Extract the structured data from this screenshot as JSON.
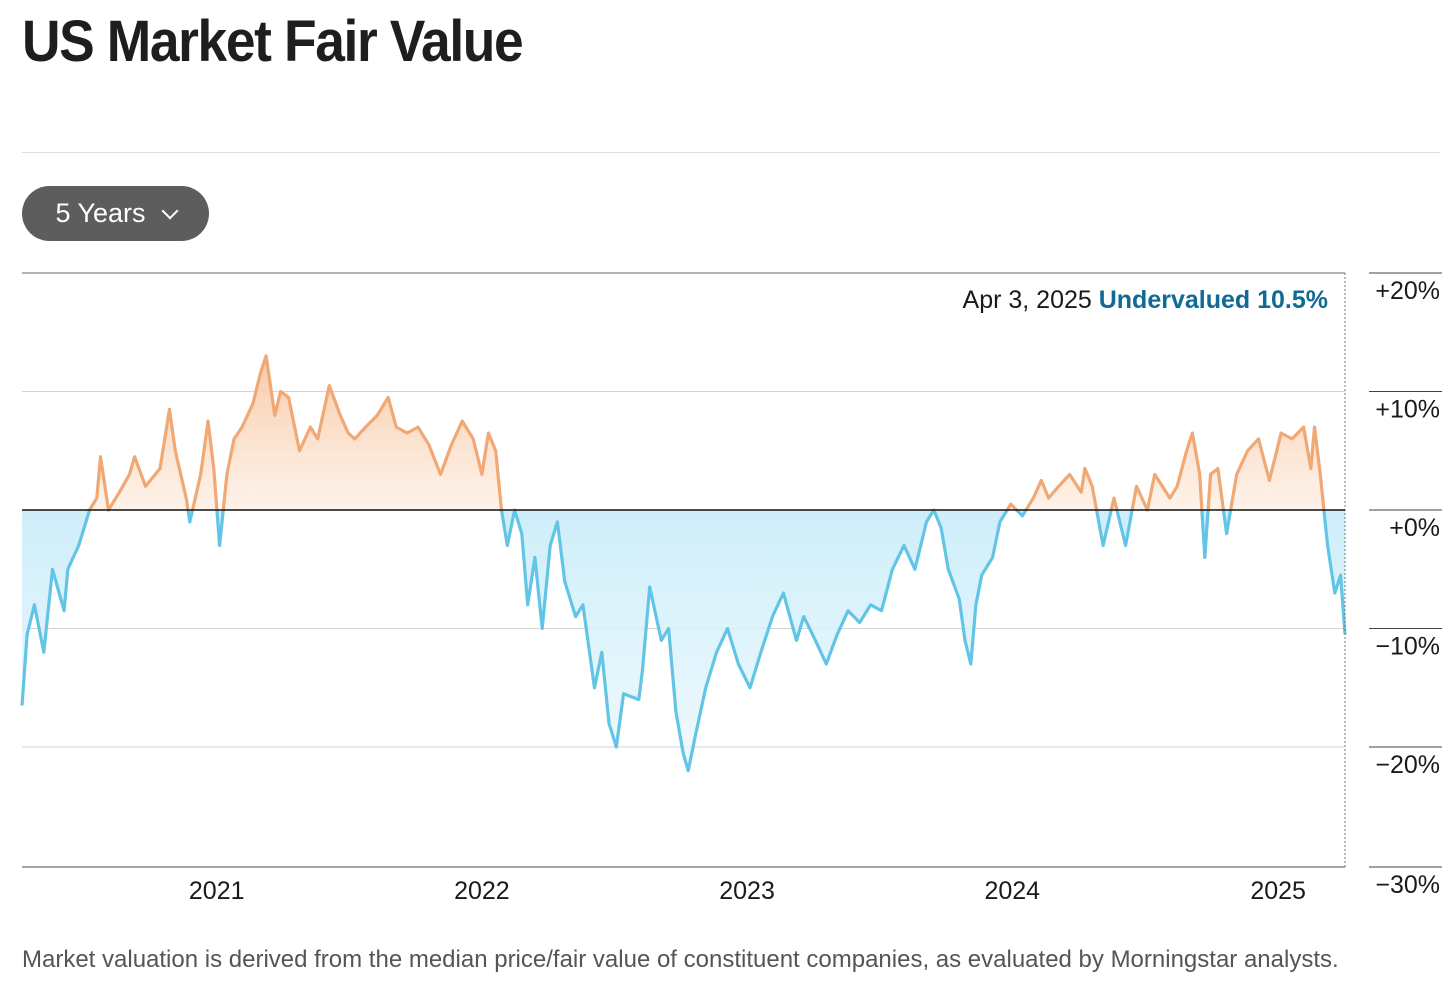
{
  "header": {
    "title": "US Market Fair Value"
  },
  "controls": {
    "range_label": "5 Years"
  },
  "annotation": {
    "date": "Apr 3, 2025",
    "status": "Undervalued 10.5%"
  },
  "footnote": "Market valuation is derived from the median price/fair value of constituent companies, as evaluated by Morningstar analysts.",
  "colors": {
    "overvalued_line": "#f0a874",
    "overvalued_fill": "#fcdcc4",
    "undervalued_line": "#62c5e6",
    "undervalued_fill": "#cfeef9",
    "status_text": "#0f6a96"
  },
  "chart_data": {
    "type": "area",
    "title": "US Market Fair Value",
    "xlabel": "",
    "ylabel": "",
    "x_tick_labels": [
      "2021",
      "2022",
      "2023",
      "2024",
      "2025"
    ],
    "y_tick_labels": [
      "+20%",
      "+10%",
      "+0%",
      "−10%",
      "−20%",
      "−30%"
    ],
    "ylim": [
      -30,
      20
    ],
    "xlim": [
      "2020-04-08",
      "2025-04-03"
    ],
    "grid": true,
    "series": [
      {
        "points": [
          [
            "2020-04-08",
            -16.5
          ],
          [
            "2020-04-15",
            -10.5
          ],
          [
            "2020-04-25",
            -8
          ],
          [
            "2020-05-08",
            -12
          ],
          [
            "2020-05-20",
            -5
          ],
          [
            "2020-06-05",
            -8.5
          ],
          [
            "2020-06-10",
            -5
          ],
          [
            "2020-06-25",
            -3
          ],
          [
            "2020-07-10",
            0
          ],
          [
            "2020-07-20",
            1
          ],
          [
            "2020-07-25",
            4.5
          ],
          [
            "2020-08-05",
            0
          ],
          [
            "2020-08-20",
            1.5
          ],
          [
            "2020-09-03",
            3
          ],
          [
            "2020-09-10",
            4.5
          ],
          [
            "2020-09-25",
            2
          ],
          [
            "2020-10-15",
            3.5
          ],
          [
            "2020-10-28",
            8.5
          ],
          [
            "2020-11-05",
            5
          ],
          [
            "2020-11-20",
            1
          ],
          [
            "2020-11-25",
            -1
          ],
          [
            "2020-12-10",
            3
          ],
          [
            "2020-12-20",
            7.5
          ],
          [
            "2020-12-28",
            3.5
          ],
          [
            "2021-01-05",
            -3
          ],
          [
            "2021-01-15",
            3
          ],
          [
            "2021-01-25",
            6
          ],
          [
            "2021-02-05",
            7
          ],
          [
            "2021-02-20",
            9
          ],
          [
            "2021-03-02",
            11.5
          ],
          [
            "2021-03-10",
            13
          ],
          [
            "2021-03-22",
            8
          ],
          [
            "2021-03-30",
            10
          ],
          [
            "2021-04-10",
            9.5
          ],
          [
            "2021-04-25",
            5
          ],
          [
            "2021-05-10",
            7
          ],
          [
            "2021-05-20",
            6
          ],
          [
            "2021-06-05",
            10.5
          ],
          [
            "2021-06-20",
            8
          ],
          [
            "2021-07-01",
            6.5
          ],
          [
            "2021-07-10",
            6
          ],
          [
            "2021-07-25",
            7
          ],
          [
            "2021-08-10",
            8
          ],
          [
            "2021-08-25",
            9.5
          ],
          [
            "2021-09-05",
            7
          ],
          [
            "2021-09-20",
            6.5
          ],
          [
            "2021-10-05",
            7
          ],
          [
            "2021-10-20",
            5.5
          ],
          [
            "2021-11-05",
            3
          ],
          [
            "2021-11-20",
            5.5
          ],
          [
            "2021-12-05",
            7.5
          ],
          [
            "2021-12-20",
            6
          ],
          [
            "2022-01-01",
            3
          ],
          [
            "2022-01-10",
            6.5
          ],
          [
            "2022-01-20",
            5
          ],
          [
            "2022-01-28",
            0
          ],
          [
            "2022-02-05",
            -3
          ],
          [
            "2022-02-15",
            0
          ],
          [
            "2022-02-25",
            -2
          ],
          [
            "2022-03-05",
            -8
          ],
          [
            "2022-03-15",
            -4
          ],
          [
            "2022-03-25",
            -10
          ],
          [
            "2022-04-05",
            -3
          ],
          [
            "2022-04-15",
            -1
          ],
          [
            "2022-04-25",
            -6
          ],
          [
            "2022-05-10",
            -9
          ],
          [
            "2022-05-20",
            -8
          ],
          [
            "2022-06-05",
            -15
          ],
          [
            "2022-06-15",
            -12
          ],
          [
            "2022-06-25",
            -18
          ],
          [
            "2022-07-05",
            -20
          ],
          [
            "2022-07-15",
            -15.5
          ],
          [
            "2022-08-05",
            -16
          ],
          [
            "2022-08-10",
            -13.5
          ],
          [
            "2022-08-20",
            -6.5
          ],
          [
            "2022-09-05",
            -11
          ],
          [
            "2022-09-15",
            -10
          ],
          [
            "2022-09-25",
            -17
          ],
          [
            "2022-10-05",
            -20.5
          ],
          [
            "2022-10-12",
            -22
          ],
          [
            "2022-10-22",
            -19
          ],
          [
            "2022-11-05",
            -15
          ],
          [
            "2022-11-20",
            -12
          ],
          [
            "2022-12-05",
            -10
          ],
          [
            "2022-12-20",
            -13
          ],
          [
            "2023-01-05",
            -15
          ],
          [
            "2023-01-20",
            -12
          ],
          [
            "2023-02-05",
            -9
          ],
          [
            "2023-02-20",
            -7
          ],
          [
            "2023-03-10",
            -11
          ],
          [
            "2023-03-20",
            -9
          ],
          [
            "2023-04-05",
            -11
          ],
          [
            "2023-04-20",
            -13
          ],
          [
            "2023-05-05",
            -10.5
          ],
          [
            "2023-05-20",
            -8.5
          ],
          [
            "2023-06-05",
            -9.5
          ],
          [
            "2023-06-20",
            -8
          ],
          [
            "2023-07-05",
            -8.5
          ],
          [
            "2023-07-20",
            -5
          ],
          [
            "2023-08-05",
            -3
          ],
          [
            "2023-08-20",
            -5
          ],
          [
            "2023-09-05",
            -1
          ],
          [
            "2023-09-15",
            0
          ],
          [
            "2023-09-25",
            -1.5
          ],
          [
            "2023-10-05",
            -5
          ],
          [
            "2023-10-20",
            -7.5
          ],
          [
            "2023-10-28",
            -11
          ],
          [
            "2023-11-05",
            -13
          ],
          [
            "2023-11-12",
            -8
          ],
          [
            "2023-11-20",
            -5.5
          ],
          [
            "2023-12-05",
            -4
          ],
          [
            "2023-12-15",
            -1
          ],
          [
            "2023-12-30",
            0.5
          ],
          [
            "2024-01-15",
            -0.5
          ],
          [
            "2024-01-30",
            1
          ],
          [
            "2024-02-10",
            2.5
          ],
          [
            "2024-02-20",
            1
          ],
          [
            "2024-03-05",
            2
          ],
          [
            "2024-03-20",
            3
          ],
          [
            "2024-04-05",
            1.5
          ],
          [
            "2024-04-10",
            3.5
          ],
          [
            "2024-04-20",
            2
          ],
          [
            "2024-05-05",
            -3
          ],
          [
            "2024-05-20",
            1
          ],
          [
            "2024-06-05",
            -3
          ],
          [
            "2024-06-20",
            2
          ],
          [
            "2024-07-05",
            0
          ],
          [
            "2024-07-15",
            3
          ],
          [
            "2024-08-05",
            1
          ],
          [
            "2024-08-15",
            2
          ],
          [
            "2024-08-28",
            5
          ],
          [
            "2024-09-05",
            6.5
          ],
          [
            "2024-09-15",
            3
          ],
          [
            "2024-09-22",
            -4
          ],
          [
            "2024-09-30",
            3
          ],
          [
            "2024-10-10",
            3.5
          ],
          [
            "2024-10-22",
            -2
          ],
          [
            "2024-11-05",
            3
          ],
          [
            "2024-11-20",
            5
          ],
          [
            "2024-12-05",
            6
          ],
          [
            "2024-12-20",
            2.5
          ],
          [
            "2025-01-05",
            6.5
          ],
          [
            "2025-01-20",
            6
          ],
          [
            "2025-02-05",
            7
          ],
          [
            "2025-02-15",
            3.5
          ],
          [
            "2025-02-20",
            7
          ],
          [
            "2025-02-28",
            3
          ],
          [
            "2025-03-05",
            0
          ],
          [
            "2025-03-10",
            -3
          ],
          [
            "2025-03-20",
            -7
          ],
          [
            "2025-03-28",
            -5.5
          ],
          [
            "2025-04-03",
            -10.5
          ]
        ]
      }
    ]
  }
}
